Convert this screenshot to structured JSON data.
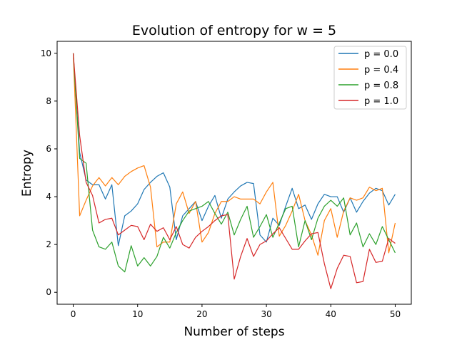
{
  "chart_data": {
    "type": "line",
    "title": "Evolution of entropy for w = 5",
    "xlabel": "Number of steps",
    "ylabel": "Entropy",
    "xlim": [
      -2.5,
      52.5
    ],
    "ylim": [
      -0.5,
      10.5
    ],
    "xticks": [
      0,
      10,
      20,
      30,
      40,
      50
    ],
    "yticks": [
      0,
      2,
      4,
      6,
      8,
      10
    ],
    "grid": false,
    "legend_position": "top-right",
    "x": [
      0,
      1,
      2,
      3,
      4,
      5,
      6,
      7,
      8,
      9,
      10,
      11,
      12,
      13,
      14,
      15,
      16,
      17,
      18,
      19,
      20,
      21,
      22,
      23,
      24,
      25,
      26,
      27,
      28,
      29,
      30,
      31,
      32,
      33,
      34,
      35,
      36,
      37,
      38,
      39,
      40,
      41,
      42,
      43,
      44,
      45,
      46,
      47,
      48,
      49,
      50
    ],
    "series": [
      {
        "name": "p = 0.0",
        "color": "#1f77b4",
        "values": [
          10,
          5.85,
          4.7,
          4.5,
          4.5,
          3.9,
          4.5,
          1.95,
          3.2,
          3.4,
          3.7,
          4.3,
          4.6,
          4.85,
          5.0,
          4.4,
          2.2,
          3.2,
          3.5,
          3.8,
          3.0,
          3.6,
          4.05,
          3.1,
          3.9,
          4.2,
          4.45,
          4.6,
          4.55,
          2.4,
          2.1,
          3.1,
          2.8,
          3.6,
          4.35,
          3.5,
          3.65,
          3.05,
          3.7,
          4.1,
          4.0,
          4.0,
          3.35,
          3.95,
          3.35,
          3.8,
          4.15,
          4.35,
          4.25,
          3.65,
          4.1
        ]
      },
      {
        "name": "p = 0.4",
        "color": "#ff7f0e",
        "values": [
          10,
          3.2,
          3.85,
          4.45,
          4.8,
          4.45,
          4.8,
          4.5,
          4.85,
          5.05,
          5.2,
          5.3,
          4.4,
          1.9,
          2.1,
          2.1,
          3.7,
          4.2,
          3.3,
          3.8,
          2.1,
          2.5,
          3.3,
          3.8,
          3.8,
          4.0,
          3.9,
          3.9,
          3.9,
          3.7,
          4.2,
          4.6,
          2.35,
          2.8,
          3.4,
          4.1,
          3.0,
          2.4,
          1.55,
          3.0,
          3.5,
          2.3,
          3.4,
          3.95,
          3.85,
          3.95,
          4.4,
          4.25,
          4.35,
          1.65,
          2.9
        ]
      },
      {
        "name": "p = 0.8",
        "color": "#2ca02c",
        "values": [
          10,
          5.6,
          5.4,
          2.6,
          1.9,
          1.8,
          2.1,
          1.1,
          0.85,
          1.95,
          1.1,
          1.45,
          1.1,
          1.5,
          2.3,
          1.85,
          2.5,
          3.0,
          3.4,
          3.5,
          3.6,
          3.8,
          3.3,
          2.85,
          3.35,
          2.4,
          3.05,
          3.6,
          2.3,
          2.75,
          3.25,
          2.3,
          2.9,
          3.5,
          3.6,
          1.9,
          3.0,
          2.2,
          3.1,
          3.6,
          3.85,
          3.6,
          3.95,
          2.4,
          2.9,
          1.9,
          2.45,
          2.0,
          2.75,
          2.2,
          1.65
        ]
      },
      {
        "name": "p = 1.0",
        "color": "#d62728",
        "values": [
          10,
          6.55,
          4.6,
          4.05,
          2.9,
          3.05,
          3.1,
          2.4,
          2.6,
          2.8,
          2.75,
          2.2,
          2.85,
          2.55,
          2.7,
          2.2,
          2.75,
          2.0,
          1.85,
          2.3,
          2.55,
          2.75,
          3.0,
          3.2,
          3.25,
          0.55,
          1.5,
          2.25,
          1.5,
          2.0,
          2.15,
          2.45,
          2.7,
          2.25,
          1.8,
          1.8,
          2.15,
          2.45,
          2.5,
          1.2,
          0.15,
          1.0,
          1.55,
          1.5,
          0.4,
          0.45,
          1.8,
          1.25,
          1.3,
          2.25,
          2.05
        ]
      }
    ]
  }
}
